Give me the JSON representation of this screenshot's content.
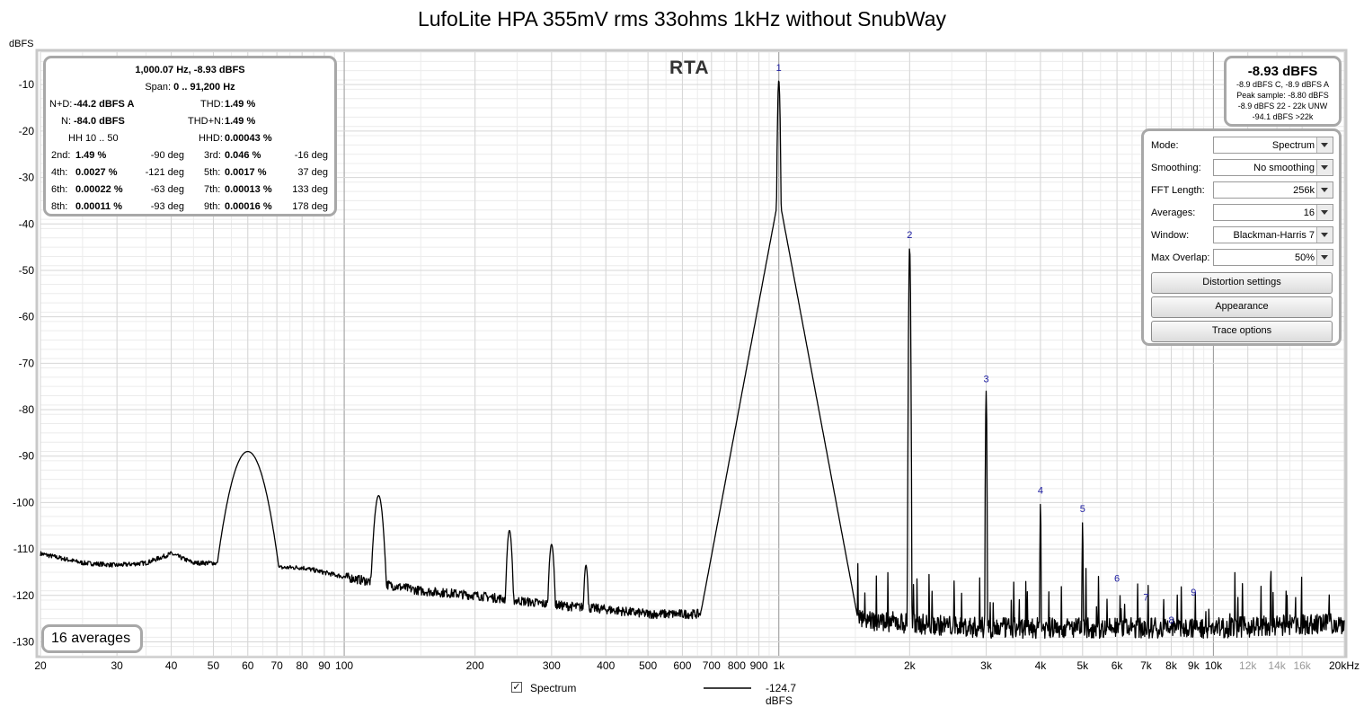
{
  "title": "LufoLite HPA 355mV rms 33ohms 1kHz without SnubWay",
  "rta_label": "RTA",
  "y_unit": "dBFS",
  "stats": {
    "fund": "1,000.07 Hz, -8.93 dBFS",
    "span_label": "Span:",
    "span": "0 .. 91,200 Hz",
    "nd_label": "N+D:",
    "nd": "-44.2 dBFS A",
    "thd_label": "THD:",
    "thd": "1.49 %",
    "n_label": "N:",
    "n": "-84.0 dBFS",
    "thdn_label": "THD+N:",
    "thdn": "1.49 %",
    "hh": "HH 10 .. 50",
    "hhd_label": "HHD:",
    "hhd": "0.00043 %",
    "harmonics": [
      {
        "l": "2nd:",
        "v": "1.49 %",
        "d": "-90 deg",
        "l2": "3rd:",
        "v2": "0.046 %",
        "d2": "-16 deg"
      },
      {
        "l": "4th:",
        "v": "0.0027 %",
        "d": "-121 deg",
        "l2": "5th:",
        "v2": "0.0017 %",
        "d2": "37 deg"
      },
      {
        "l": "6th:",
        "v": "0.00022 %",
        "d": "-63 deg",
        "l2": "7th:",
        "v2": "0.00013 %",
        "d2": "133 deg"
      },
      {
        "l": "8th:",
        "v": "0.00011 %",
        "d": "-93 deg",
        "l2": "9th:",
        "v2": "0.00016 %",
        "d2": "178 deg"
      }
    ]
  },
  "level": {
    "big": "-8.93 dBFS",
    "l1": "-8.9 dBFS C, -8.9 dBFS A",
    "l2": "Peak sample: -8.80 dBFS",
    "l3": "-8.9 dBFS 22 - 22k UNW",
    "l4": "-94.1 dBFS >22k"
  },
  "controls": {
    "mode_label": "Mode:",
    "mode": "Spectrum",
    "smoothing_label": "Smoothing:",
    "smoothing": "No  smoothing",
    "fft_label": "FFT Length:",
    "fft": "256k",
    "averages_label": "Averages:",
    "averages": "16",
    "window_label": "Window:",
    "window": "Blackman-Harris 7",
    "overlap_label": "Max Overlap:",
    "overlap": "50%",
    "distortion_button": "Distortion settings",
    "appearance_button": "Appearance",
    "trace_button": "Trace options"
  },
  "averages_badge": "16 averages",
  "legend": {
    "check": "✓",
    "series": "Spectrum",
    "value": "-124.7 dBFS"
  },
  "chart_data": {
    "type": "line",
    "x_scale": "log",
    "xlim": [
      20,
      20000
    ],
    "ylim": [
      -133,
      -3
    ],
    "ylabel": "dBFS",
    "x_ticks": [
      {
        "v": 20,
        "l": "20"
      },
      {
        "v": 30,
        "l": "30"
      },
      {
        "v": 40,
        "l": "40"
      },
      {
        "v": 50,
        "l": "50"
      },
      {
        "v": 60,
        "l": "60"
      },
      {
        "v": 70,
        "l": "70"
      },
      {
        "v": 80,
        "l": "80"
      },
      {
        "v": 90,
        "l": "90"
      },
      {
        "v": 100,
        "l": "100"
      },
      {
        "v": 200,
        "l": "200"
      },
      {
        "v": 300,
        "l": "300"
      },
      {
        "v": 400,
        "l": "400"
      },
      {
        "v": 500,
        "l": "500"
      },
      {
        "v": 600,
        "l": "600"
      },
      {
        "v": 700,
        "l": "700"
      },
      {
        "v": 800,
        "l": "800"
      },
      {
        "v": 900,
        "l": "900"
      },
      {
        "v": 1000,
        "l": "1k"
      },
      {
        "v": 2000,
        "l": "2k"
      },
      {
        "v": 3000,
        "l": "3k"
      },
      {
        "v": 4000,
        "l": "4k"
      },
      {
        "v": 5000,
        "l": "5k"
      },
      {
        "v": 6000,
        "l": "6k"
      },
      {
        "v": 7000,
        "l": "7k"
      },
      {
        "v": 8000,
        "l": "8k"
      },
      {
        "v": 9000,
        "l": "9k"
      },
      {
        "v": 10000,
        "l": "10k"
      },
      {
        "v": 12000,
        "l": "12k"
      },
      {
        "v": 14000,
        "l": "14k"
      },
      {
        "v": 16000,
        "l": "16k"
      },
      {
        "v": 20000,
        "l": "20kHz"
      }
    ],
    "y_ticks": [
      -10,
      -20,
      -30,
      -40,
      -50,
      -60,
      -70,
      -80,
      -90,
      -100,
      -110,
      -120,
      -130
    ],
    "harmonic_markers": [
      {
        "n": "1",
        "f": 1000,
        "db": -9
      },
      {
        "n": "2",
        "f": 2000,
        "db": -45
      },
      {
        "n": "3",
        "f": 3000,
        "db": -76
      },
      {
        "n": "4",
        "f": 4000,
        "db": -100
      },
      {
        "n": "5",
        "f": 5000,
        "db": -104
      },
      {
        "n": "6",
        "f": 6000,
        "db": -119
      },
      {
        "n": "7",
        "f": 7000,
        "db": -123
      },
      {
        "n": "8",
        "f": 8000,
        "db": -128
      },
      {
        "n": "9",
        "f": 9000,
        "db": -122
      }
    ],
    "noise_floor": [
      [
        20,
        -111
      ],
      [
        25,
        -113
      ],
      [
        30,
        -113.5
      ],
      [
        35,
        -113
      ],
      [
        40,
        -111
      ],
      [
        45,
        -113
      ],
      [
        50,
        -113
      ],
      [
        55,
        -114
      ],
      [
        65,
        -114
      ],
      [
        80,
        -114
      ],
      [
        100,
        -116
      ],
      [
        150,
        -119
      ],
      [
        200,
        -120
      ],
      [
        300,
        -122
      ],
      [
        400,
        -123
      ],
      [
        500,
        -124
      ],
      [
        700,
        -124
      ],
      [
        900,
        -121
      ],
      [
        1100,
        -122
      ],
      [
        1500,
        -125
      ],
      [
        2000,
        -126
      ],
      [
        3000,
        -127
      ],
      [
        5000,
        -127
      ],
      [
        10000,
        -127
      ],
      [
        20000,
        -126
      ]
    ],
    "peaks": [
      {
        "f": 60,
        "db": -89,
        "w": 0.035
      },
      {
        "f": 120,
        "db": -98.5,
        "w": 0.01
      },
      {
        "f": 240,
        "db": -106,
        "w": 0.006
      },
      {
        "f": 300,
        "db": -109,
        "w": 0.006
      },
      {
        "f": 360,
        "db": -113.5,
        "w": 0.005
      },
      {
        "f": 1000,
        "db": -9,
        "w": 0.0025
      },
      {
        "f": 2000,
        "db": -45,
        "w": 0.0015
      },
      {
        "f": 3000,
        "db": -76,
        "w": 0.0012
      },
      {
        "f": 4000,
        "db": -100,
        "w": 0.001
      },
      {
        "f": 5000,
        "db": -104,
        "w": 0.001
      }
    ],
    "legend_value": "-124.7 dBFS"
  }
}
